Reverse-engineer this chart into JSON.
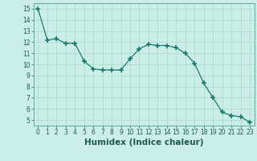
{
  "x": [
    0,
    1,
    2,
    3,
    4,
    5,
    6,
    7,
    8,
    9,
    10,
    11,
    12,
    13,
    14,
    15,
    16,
    17,
    18,
    19,
    20,
    21,
    22,
    23
  ],
  "y": [
    15.0,
    12.2,
    12.3,
    11.9,
    11.9,
    10.3,
    9.6,
    9.5,
    9.5,
    9.5,
    10.5,
    11.4,
    11.8,
    11.7,
    11.7,
    11.5,
    11.0,
    10.1,
    8.3,
    7.0,
    5.7,
    5.4,
    5.3,
    4.8
  ],
  "line_color": "#1a7a6e",
  "marker": "+",
  "marker_size": 4,
  "bg_color": "#cceee8",
  "grid_color": "#aaddcc",
  "xlabel": "Humidex (Indice chaleur)",
  "xlim": [
    -0.5,
    23.5
  ],
  "ylim": [
    4.5,
    15.5
  ],
  "yticks": [
    5,
    6,
    7,
    8,
    9,
    10,
    11,
    12,
    13,
    14,
    15
  ],
  "xticks": [
    0,
    1,
    2,
    3,
    4,
    5,
    6,
    7,
    8,
    9,
    10,
    11,
    12,
    13,
    14,
    15,
    16,
    17,
    18,
    19,
    20,
    21,
    22,
    23
  ],
  "tick_fontsize": 5.5,
  "xlabel_fontsize": 7.5
}
